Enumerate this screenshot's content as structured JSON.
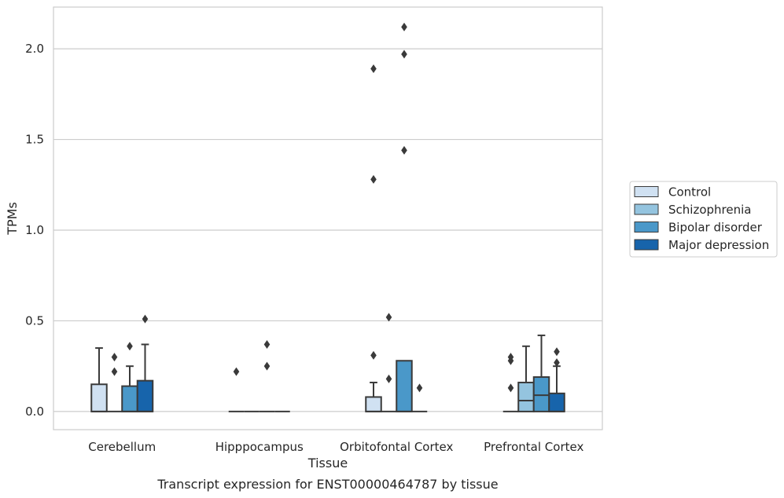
{
  "caption": "Transcript expression for ENST00000464787 by tissue",
  "chart_data": {
    "type": "box",
    "xlabel": "Tissue",
    "ylabel": "TPMs",
    "ylim": [
      -0.1,
      2.23
    ],
    "yticks": [
      0.0,
      0.5,
      1.0,
      1.5,
      2.0
    ],
    "ytick_labels": [
      "0.0",
      "0.5",
      "1.0",
      "1.5",
      "2.0"
    ],
    "grid": "horizontal",
    "legend_position": "right",
    "categories": [
      "Cerebellum",
      "Hipppocampus",
      "Orbitofontal Cortex",
      "Prefrontal Cortex"
    ],
    "series": [
      {
        "name": "Control",
        "color": "#d0e1f2",
        "boxes": [
          {
            "q1": 0,
            "median": 0,
            "q3": 0.15,
            "whisker_low": 0,
            "whisker_high": 0.35,
            "outliers": []
          },
          {
            "q1": 0,
            "median": 0,
            "q3": 0,
            "whisker_low": 0,
            "whisker_high": 0,
            "outliers": [
              0.22
            ]
          },
          {
            "q1": 0,
            "median": 0,
            "q3": 0.08,
            "whisker_low": 0,
            "whisker_high": 0.16,
            "outliers": [
              0.31,
              1.28,
              1.89
            ]
          },
          {
            "q1": 0,
            "median": 0,
            "q3": 0,
            "whisker_low": 0,
            "whisker_high": 0,
            "outliers": [
              0.13,
              0.28,
              0.3
            ]
          }
        ]
      },
      {
        "name": "Schizophrenia",
        "color": "#94c4df",
        "boxes": [
          {
            "q1": 0,
            "median": 0,
            "q3": 0,
            "whisker_low": 0,
            "whisker_high": 0,
            "outliers": [
              0.22,
              0.3
            ]
          },
          {
            "q1": 0,
            "median": 0,
            "q3": 0,
            "whisker_low": 0,
            "whisker_high": 0,
            "outliers": []
          },
          {
            "q1": 0,
            "median": 0,
            "q3": 0,
            "whisker_low": 0,
            "whisker_high": 0,
            "outliers": [
              0.18,
              0.52
            ]
          },
          {
            "q1": 0,
            "median": 0.06,
            "q3": 0.16,
            "whisker_low": 0,
            "whisker_high": 0.36,
            "outliers": []
          }
        ]
      },
      {
        "name": "Bipolar disorder",
        "color": "#4a98c9",
        "boxes": [
          {
            "q1": 0,
            "median": 0,
            "q3": 0.14,
            "whisker_low": 0,
            "whisker_high": 0.25,
            "outliers": [
              0.36
            ]
          },
          {
            "q1": 0,
            "median": 0,
            "q3": 0,
            "whisker_low": 0,
            "whisker_high": 0,
            "outliers": [
              0.25,
              0.37
            ]
          },
          {
            "q1": 0,
            "median": 0,
            "q3": 0.28,
            "whisker_low": 0,
            "whisker_high": 0.28,
            "outliers": [
              1.44,
              1.97,
              2.12
            ]
          },
          {
            "q1": 0,
            "median": 0.09,
            "q3": 0.19,
            "whisker_low": 0,
            "whisker_high": 0.42,
            "outliers": []
          }
        ]
      },
      {
        "name": "Major depression",
        "color": "#1764ab",
        "boxes": [
          {
            "q1": 0,
            "median": 0,
            "q3": 0.17,
            "whisker_low": 0,
            "whisker_high": 0.37,
            "outliers": [
              0.51
            ]
          },
          {
            "q1": 0,
            "median": 0,
            "q3": 0,
            "whisker_low": 0,
            "whisker_high": 0,
            "outliers": []
          },
          {
            "q1": 0,
            "median": 0,
            "q3": 0,
            "whisker_low": 0,
            "whisker_high": 0,
            "outliers": [
              0.13
            ]
          },
          {
            "q1": 0,
            "median": 0,
            "q3": 0.1,
            "whisker_low": 0,
            "whisker_high": 0.25,
            "outliers": [
              0.27,
              0.33
            ]
          }
        ]
      }
    ]
  }
}
